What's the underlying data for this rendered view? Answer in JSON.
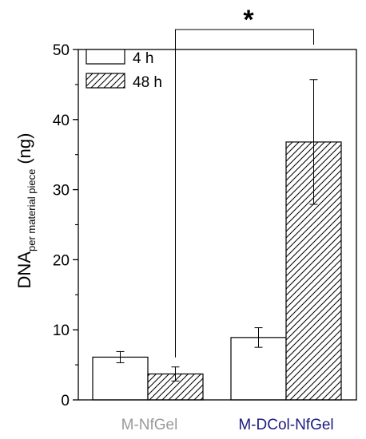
{
  "chart_data": {
    "type": "bar",
    "categories": [
      "M-NfGel",
      "M-DCol-NfGel"
    ],
    "category_colors": [
      "#999999",
      "#1a1a80"
    ],
    "series": [
      {
        "name": "4 h",
        "pattern": "open",
        "values": [
          6.1,
          8.9
        ],
        "errors": [
          0.8,
          1.4
        ]
      },
      {
        "name": "48 h",
        "pattern": "hatched",
        "values": [
          3.7,
          36.8
        ],
        "errors": [
          1.0,
          8.9
        ]
      }
    ],
    "ylabel": {
      "main": "DNA",
      "subscript": "per material piece",
      "unit": "(ng)"
    },
    "ylim": [
      0,
      50
    ],
    "yticks": [
      "0",
      "10",
      "20",
      "30",
      "40",
      "50"
    ],
    "legend_position": "top-left",
    "significance": {
      "label": "*",
      "between": [
        "M-NfGel 48 h",
        "M-DCol-NfGel 48 h"
      ]
    }
  }
}
